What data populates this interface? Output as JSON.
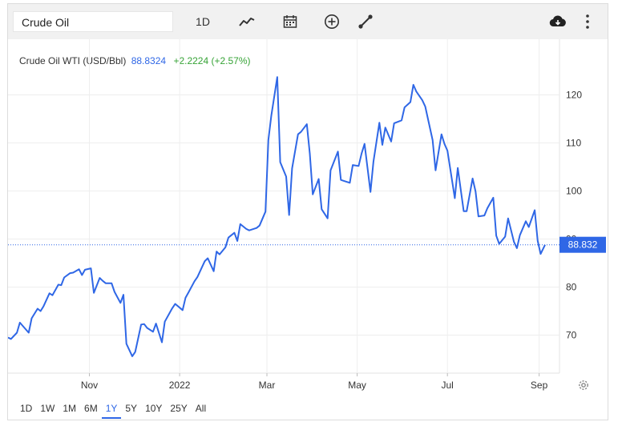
{
  "toolbar": {
    "search_value": "Crude Oil",
    "period_label": "1D",
    "icons": [
      "line-chart-icon",
      "calendar-icon",
      "add-compare-icon",
      "draw-tool-icon",
      "download-cloud-icon",
      "more-vert-icon"
    ]
  },
  "legend": {
    "name": "Crude Oil WTI (USD/Bbl)",
    "price": "88.8324",
    "change": "+2.2224 (+2.57%)"
  },
  "colors": {
    "line": "#2f67e6",
    "up": "#36a336",
    "badge": "#2f67e6",
    "grid": "#eeeeee"
  },
  "ranges": {
    "items": [
      "1D",
      "1W",
      "1M",
      "6M",
      "1Y",
      "5Y",
      "10Y",
      "25Y",
      "All"
    ],
    "active": "1Y"
  },
  "chart_data": {
    "type": "line",
    "title": "Crude Oil WTI (USD/Bbl)",
    "x_tick_labels": [
      "Nov",
      "2022",
      "Mar",
      "May",
      "Jul",
      "Sep"
    ],
    "y_ticks": [
      70,
      80,
      90,
      100,
      110,
      120
    ],
    "ylim": [
      63,
      123
    ],
    "last_value_label": "88.832",
    "grid": true,
    "series": [
      {
        "name": "Crude Oil WTI",
        "x": [
          "2021-09-07",
          "2021-09-09",
          "2021-09-13",
          "2021-09-15",
          "2021-09-17",
          "2021-09-21",
          "2021-09-23",
          "2021-09-27",
          "2021-09-29",
          "2021-10-01",
          "2021-10-05",
          "2021-10-07",
          "2021-10-11",
          "2021-10-13",
          "2021-10-15",
          "2021-10-19",
          "2021-10-21",
          "2021-10-25",
          "2021-10-27",
          "2021-10-29",
          "2021-11-02",
          "2021-11-04",
          "2021-11-08",
          "2021-11-10",
          "2021-11-12",
          "2021-11-16",
          "2021-11-18",
          "2021-11-22",
          "2021-11-24",
          "2021-11-26",
          "2021-11-30",
          "2021-12-02",
          "2021-12-06",
          "2021-12-08",
          "2021-12-10",
          "2021-12-14",
          "2021-12-16",
          "2021-12-20",
          "2021-12-22",
          "2021-12-27",
          "2021-12-29",
          "2022-01-03",
          "2022-01-05",
          "2022-01-07",
          "2022-01-11",
          "2022-01-13",
          "2022-01-18",
          "2022-01-20",
          "2022-01-24",
          "2022-01-26",
          "2022-01-28",
          "2022-02-01",
          "2022-02-03",
          "2022-02-07",
          "2022-02-09",
          "2022-02-11",
          "2022-02-15",
          "2022-02-17",
          "2022-02-22",
          "2022-02-24",
          "2022-02-28",
          "2022-03-02",
          "2022-03-04",
          "2022-03-08",
          "2022-03-10",
          "2022-03-14",
          "2022-03-16",
          "2022-03-18",
          "2022-03-22",
          "2022-03-24",
          "2022-03-28",
          "2022-03-30",
          "2022-04-01",
          "2022-04-05",
          "2022-04-07",
          "2022-04-11",
          "2022-04-13",
          "2022-04-18",
          "2022-04-20",
          "2022-04-22",
          "2022-04-26",
          "2022-04-28",
          "2022-05-02",
          "2022-05-04",
          "2022-05-06",
          "2022-05-10",
          "2022-05-12",
          "2022-05-16",
          "2022-05-18",
          "2022-05-20",
          "2022-05-24",
          "2022-05-26",
          "2022-05-31",
          "2022-06-02",
          "2022-06-06",
          "2022-06-08",
          "2022-06-10",
          "2022-06-14",
          "2022-06-16",
          "2022-06-21",
          "2022-06-23",
          "2022-06-27",
          "2022-06-29",
          "2022-07-01",
          "2022-07-06",
          "2022-07-08",
          "2022-07-12",
          "2022-07-14",
          "2022-07-18",
          "2022-07-20",
          "2022-07-22",
          "2022-07-26",
          "2022-07-28",
          "2022-08-01",
          "2022-08-03",
          "2022-08-05",
          "2022-08-09",
          "2022-08-11",
          "2022-08-15",
          "2022-08-17",
          "2022-08-19",
          "2022-08-23",
          "2022-08-25",
          "2022-08-29",
          "2022-08-31",
          "2022-09-02",
          "2022-09-05"
        ],
        "values": [
          69.5,
          69.2,
          70.5,
          72.6,
          71.9,
          70.5,
          73.5,
          75.5,
          75.0,
          76.0,
          78.7,
          78.3,
          80.5,
          80.4,
          82.0,
          82.9,
          83.0,
          83.7,
          82.5,
          83.6,
          83.9,
          78.8,
          81.9,
          81.3,
          80.8,
          80.8,
          79.0,
          76.7,
          78.4,
          68.2,
          65.6,
          66.5,
          72.2,
          72.3,
          71.5,
          70.7,
          72.4,
          68.5,
          72.8,
          75.6,
          76.5,
          75.2,
          77.8,
          78.9,
          81.2,
          82.1,
          85.4,
          86.0,
          83.3,
          87.4,
          86.8,
          88.3,
          90.3,
          91.3,
          89.6,
          93.1,
          92.1,
          91.8,
          92.3,
          92.8,
          95.7,
          110.6,
          115.7,
          123.7,
          106.0,
          103.0,
          95.0,
          104.7,
          111.8,
          112.3,
          113.9,
          107.8,
          99.3,
          102.5,
          96.2,
          94.3,
          104.3,
          108.2,
          102.3,
          102.1,
          101.7,
          105.4,
          105.2,
          107.8,
          109.8,
          99.8,
          106.1,
          114.2,
          109.6,
          113.2,
          110.3,
          114.1,
          114.7,
          117.4,
          118.5,
          122.1,
          120.7,
          118.9,
          117.6,
          110.6,
          104.3,
          111.8,
          109.8,
          108.4,
          98.5,
          104.8,
          95.8,
          95.8,
          102.6,
          99.9,
          94.7,
          94.9,
          96.4,
          98.6,
          90.7,
          89.0,
          90.5,
          94.3,
          89.4,
          88.1,
          90.8,
          93.7,
          92.5,
          96.0,
          89.6,
          86.9,
          88.8
        ]
      }
    ]
  }
}
